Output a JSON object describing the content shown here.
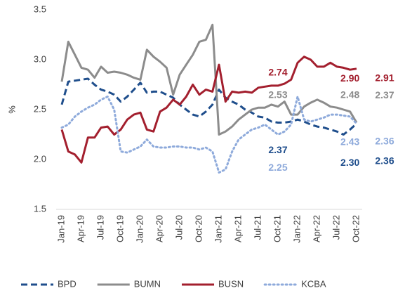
{
  "chart_data": {
    "type": "line",
    "y_label": "%",
    "categories": [
      "Jan-19",
      null,
      null,
      "Apr-19",
      null,
      null,
      "Jul-19",
      null,
      null,
      "Oct-19",
      null,
      null,
      "Jan-20",
      null,
      null,
      "Apr-20",
      null,
      null,
      "Jul-20",
      null,
      null,
      "Oct-20",
      null,
      null,
      "Jan-21",
      null,
      null,
      "Apr-21",
      null,
      null,
      "Jul-21",
      null,
      null,
      "Oct-21",
      null,
      null,
      "Jan-22",
      null,
      null,
      "Apr-22",
      null,
      null,
      "Jul-22",
      null,
      null,
      "Oct-22"
    ],
    "ylim": [
      1.5,
      3.5
    ],
    "yticks": [
      1.5,
      {
        "value": 2.0,
        "label": "2.0"
      },
      2.5,
      {
        "value": 3.0,
        "label": "3.0"
      },
      3.5
    ],
    "grid": false,
    "legend": "bottom",
    "series": [
      {
        "name": "BPD",
        "color": "#1f4e8c",
        "style": "dashed",
        "values": [
          2.55,
          2.78,
          2.79,
          2.8,
          2.81,
          2.75,
          2.7,
          2.68,
          2.65,
          2.58,
          2.63,
          2.7,
          2.77,
          2.67,
          2.68,
          2.68,
          2.65,
          2.62,
          2.55,
          2.5,
          2.45,
          2.43,
          2.48,
          2.55,
          2.7,
          2.62,
          2.58,
          2.55,
          2.5,
          2.47,
          2.43,
          2.42,
          2.38,
          2.37,
          2.37,
          2.38,
          2.4,
          2.38,
          2.35,
          2.33,
          2.32,
          2.3,
          2.28,
          2.25,
          2.3,
          2.36
        ],
        "value_labels": [
          null,
          null,
          null,
          null,
          null,
          null,
          null,
          null,
          null,
          null,
          null,
          null,
          null,
          null,
          null,
          null,
          null,
          null,
          null,
          null,
          null,
          null,
          null,
          null,
          null,
          null,
          null,
          null,
          null,
          null,
          null,
          null,
          null,
          "2.37",
          null,
          null,
          null,
          null,
          null,
          null,
          null,
          null,
          null,
          null,
          "2.30",
          "2.36"
        ]
      },
      {
        "name": "BUMN",
        "color": "#8c8c8c",
        "style": "solid",
        "values": [
          2.78,
          3.18,
          3.05,
          2.92,
          2.9,
          2.82,
          2.93,
          2.87,
          2.88,
          2.87,
          2.85,
          2.82,
          2.8,
          3.1,
          3.03,
          2.98,
          2.92,
          2.65,
          2.85,
          2.95,
          3.05,
          3.18,
          3.2,
          3.35,
          2.25,
          2.28,
          2.33,
          2.4,
          2.45,
          2.5,
          2.52,
          2.52,
          2.55,
          2.53,
          2.58,
          2.45,
          2.45,
          2.53,
          2.57,
          2.6,
          2.57,
          2.53,
          2.52,
          2.5,
          2.48,
          2.37
        ],
        "value_labels": [
          null,
          null,
          null,
          null,
          null,
          null,
          null,
          null,
          null,
          null,
          null,
          null,
          null,
          null,
          null,
          null,
          null,
          null,
          null,
          null,
          null,
          null,
          null,
          null,
          null,
          null,
          null,
          null,
          null,
          null,
          null,
          null,
          null,
          "2.53",
          null,
          null,
          null,
          null,
          null,
          null,
          null,
          null,
          null,
          null,
          "2.48",
          "2.37"
        ]
      },
      {
        "name": "BUSN",
        "color": "#a31f2e",
        "style": "solid",
        "values": [
          2.3,
          2.08,
          2.05,
          1.97,
          2.22,
          2.22,
          2.32,
          2.33,
          2.25,
          2.3,
          2.4,
          2.45,
          2.47,
          2.3,
          2.28,
          2.48,
          2.52,
          2.6,
          2.55,
          2.63,
          2.75,
          2.65,
          2.7,
          2.68,
          2.95,
          2.58,
          2.68,
          2.67,
          2.68,
          2.67,
          2.72,
          2.73,
          2.74,
          2.74,
          2.76,
          2.8,
          2.97,
          3.03,
          3.0,
          2.93,
          2.93,
          2.97,
          2.93,
          2.92,
          2.9,
          2.91
        ],
        "value_labels": [
          null,
          null,
          null,
          null,
          null,
          null,
          null,
          null,
          null,
          null,
          null,
          null,
          null,
          null,
          null,
          null,
          null,
          null,
          null,
          null,
          null,
          null,
          null,
          null,
          null,
          null,
          null,
          null,
          null,
          null,
          null,
          null,
          null,
          "2.74",
          null,
          null,
          null,
          null,
          null,
          null,
          null,
          null,
          null,
          null,
          "2.90",
          "2.91"
        ]
      },
      {
        "name": "KCBA",
        "color": "#8eaadb",
        "style": "dotted",
        "values": [
          2.32,
          2.35,
          2.43,
          2.48,
          2.52,
          2.55,
          2.6,
          2.63,
          2.5,
          2.08,
          2.07,
          2.1,
          2.13,
          2.2,
          2.13,
          2.12,
          2.12,
          2.13,
          2.13,
          2.12,
          2.12,
          2.1,
          2.12,
          2.08,
          1.87,
          1.9,
          2.08,
          2.2,
          2.25,
          2.3,
          2.32,
          2.35,
          2.3,
          2.25,
          2.28,
          2.35,
          2.63,
          2.4,
          2.38,
          2.4,
          2.42,
          2.45,
          2.45,
          2.44,
          2.43,
          2.36
        ],
        "value_labels": [
          null,
          null,
          null,
          null,
          null,
          null,
          null,
          null,
          null,
          null,
          null,
          null,
          null,
          null,
          null,
          null,
          null,
          null,
          null,
          null,
          null,
          null,
          null,
          null,
          null,
          null,
          null,
          null,
          null,
          null,
          null,
          null,
          null,
          "2.25",
          null,
          null,
          null,
          null,
          null,
          null,
          null,
          null,
          null,
          null,
          "2.43",
          "2.36"
        ]
      }
    ]
  }
}
